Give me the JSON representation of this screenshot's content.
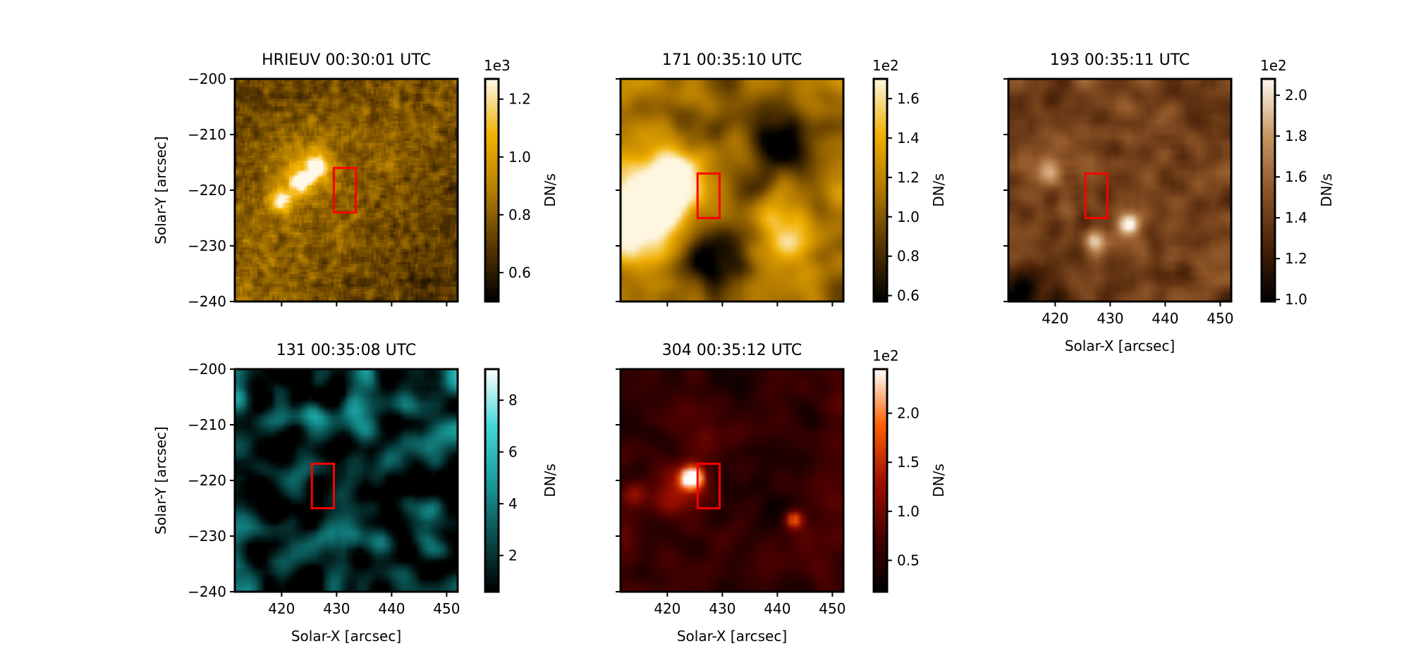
{
  "chart_data": [
    {
      "type": "heatmap",
      "title": "HRIEUV 00:30:01 UTC",
      "xlabel": "",
      "ylabel": "Solar-Y [arcsec]",
      "xlim": [
        411.5,
        452
      ],
      "ylim": [
        -240,
        -200
      ],
      "xticks": [
        420,
        430,
        440,
        450
      ],
      "yticks": [
        -240,
        -230,
        -220,
        -210,
        -200
      ],
      "colormap": "solar-euv-gold",
      "colors": [
        "#000000",
        "#5a3800",
        "#b57f00",
        "#f2b200",
        "#fff8e8"
      ],
      "colorbar": {
        "label": "DN/s",
        "multiplier": "1e3",
        "range": [
          0.5,
          1.27
        ],
        "ticks": [
          0.6,
          0.8,
          1.0,
          1.2
        ],
        "tick_labels": [
          "0.6",
          "0.8",
          "1.0",
          "1.2"
        ]
      },
      "roi_box": {
        "x": [
          429.5,
          433.5
        ],
        "y": [
          -216,
          -224
        ]
      },
      "features": [
        {
          "x": 420,
          "y": -222,
          "amp": 0.55,
          "sigma": 1.6
        },
        {
          "x": 423.5,
          "y": -218.5,
          "amp": 0.6,
          "sigma": 1.6
        },
        {
          "x": 426.5,
          "y": -216,
          "amp": 0.55,
          "sigma": 1.5
        },
        {
          "x": 424,
          "y": -215,
          "amp": 0.25,
          "sigma": 4
        }
      ]
    },
    {
      "type": "heatmap",
      "title": "171 00:35:10 UTC",
      "xlabel": "",
      "ylabel": "",
      "xlim": [
        411.5,
        452
      ],
      "ylim": [
        -240,
        -200
      ],
      "xticks": [
        420,
        430,
        440,
        450
      ],
      "yticks": [
        -240,
        -230,
        -220,
        -210,
        -200
      ],
      "colormap": "sdo-aia-171",
      "colors": [
        "#000000",
        "#553500",
        "#b07800",
        "#f2b000",
        "#fff6e0"
      ],
      "colorbar": {
        "label": "DN/s",
        "multiplier": "1e2",
        "range": [
          0.57,
          1.7
        ],
        "ticks": [
          0.6,
          0.8,
          1.0,
          1.2,
          1.4,
          1.6
        ],
        "tick_labels": [
          "0.6",
          "0.8",
          "1.0",
          "1.2",
          "1.4",
          "1.6"
        ]
      },
      "roi_box": {
        "x": [
          425.5,
          429.5
        ],
        "y": [
          -217,
          -225
        ]
      },
      "features": [
        {
          "x": 416,
          "y": -222,
          "amp": 0.8,
          "sigma": 5
        },
        {
          "x": 422,
          "y": -218,
          "amp": 0.75,
          "sigma": 3.5
        },
        {
          "x": 414,
          "y": -228,
          "amp": 0.5,
          "sigma": 4
        },
        {
          "x": 442,
          "y": -228,
          "amp": 0.35,
          "sigma": 5
        },
        {
          "x": 440,
          "y": -211,
          "amp": -0.4,
          "sigma": 5
        },
        {
          "x": 428,
          "y": -232,
          "amp": -0.5,
          "sigma": 4
        }
      ]
    },
    {
      "type": "heatmap",
      "title": "193 00:35:11 UTC",
      "xlabel": "Solar-X [arcsec]",
      "ylabel": "",
      "xlim": [
        411.5,
        452
      ],
      "ylim": [
        -240,
        -200
      ],
      "xticks": [
        420,
        430,
        440,
        450
      ],
      "yticks": [
        -240,
        -230,
        -220,
        -210,
        -200
      ],
      "colormap": "sdo-aia-193",
      "colors": [
        "#000000",
        "#4a2208",
        "#8f5628",
        "#c99863",
        "#fff8ef"
      ],
      "colorbar": {
        "label": "DN/s",
        "multiplier": "1e2",
        "range": [
          0.99,
          2.08
        ],
        "ticks": [
          1.0,
          1.2,
          1.4,
          1.6,
          1.8,
          2.0
        ],
        "tick_labels": [
          "1.0",
          "1.2",
          "1.4",
          "1.6",
          "1.8",
          "2.0"
        ]
      },
      "roi_box": {
        "x": [
          425.5,
          429.5
        ],
        "y": [
          -217,
          -225
        ]
      },
      "features": [
        {
          "x": 433.5,
          "y": -226,
          "amp": 0.8,
          "sigma": 1.4
        },
        {
          "x": 427,
          "y": -229,
          "amp": 0.45,
          "sigma": 1.3
        },
        {
          "x": 419,
          "y": -217,
          "amp": 0.35,
          "sigma": 2
        },
        {
          "x": 414,
          "y": -238,
          "amp": -0.45,
          "sigma": 3
        }
      ]
    },
    {
      "type": "heatmap",
      "title": "131 00:35:08 UTC",
      "xlabel": "Solar-X [arcsec]",
      "ylabel": "Solar-Y [arcsec]",
      "xlim": [
        411.5,
        452
      ],
      "ylim": [
        -240,
        -200
      ],
      "xticks": [
        420,
        430,
        440,
        450
      ],
      "yticks": [
        -240,
        -230,
        -220,
        -210,
        -200
      ],
      "colormap": "sdo-aia-131",
      "colors": [
        "#000000",
        "#0a4f4f",
        "#1a9e9e",
        "#45d8d8",
        "#ffffff"
      ],
      "colorbar": {
        "label": "DN/s",
        "multiplier": "",
        "range": [
          0.6,
          9.2
        ],
        "ticks": [
          2,
          4,
          6,
          8
        ],
        "tick_labels": [
          "2",
          "4",
          "6",
          "8"
        ]
      },
      "roi_box": {
        "x": [
          425.5,
          429.5
        ],
        "y": [
          -217,
          -225
        ]
      },
      "features": []
    },
    {
      "type": "heatmap",
      "title": "304 00:35:12 UTC",
      "xlabel": "Solar-X [arcsec]",
      "ylabel": "",
      "xlim": [
        411.5,
        452
      ],
      "ylim": [
        -240,
        -200
      ],
      "xticks": [
        420,
        430,
        440,
        450
      ],
      "yticks": [
        -240,
        -230,
        -220,
        -210,
        -200
      ],
      "colormap": "sdo-aia-304",
      "colors": [
        "#000000",
        "#4a0000",
        "#a01000",
        "#ff6000",
        "#ffffff"
      ],
      "colorbar": {
        "label": "DN/s",
        "multiplier": "1e2",
        "range": [
          0.18,
          2.45
        ],
        "ticks": [
          0.5,
          1.0,
          1.5,
          2.0
        ],
        "tick_labels": [
          "0.5",
          "1.0",
          "1.5",
          "2.0"
        ]
      },
      "roi_box": {
        "x": [
          425.5,
          429.5
        ],
        "y": [
          -217,
          -225
        ]
      },
      "features": [
        {
          "x": 424.5,
          "y": -219.5,
          "amp": 1.1,
          "sigma": 1.3
        },
        {
          "x": 423,
          "y": -221,
          "amp": 0.35,
          "sigma": 3
        },
        {
          "x": 443,
          "y": -227,
          "amp": 0.6,
          "sigma": 1.1
        },
        {
          "x": 414,
          "y": -222.5,
          "amp": 0.25,
          "sigma": 1.5
        }
      ]
    }
  ]
}
